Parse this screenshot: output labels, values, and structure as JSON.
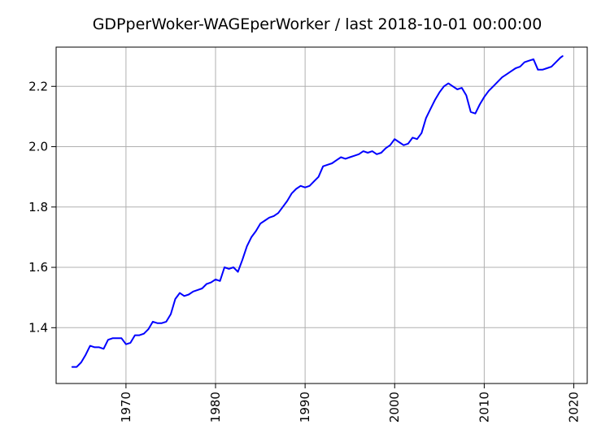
{
  "chart_data": {
    "type": "line",
    "title": "GDPperWoker-WAGEperWorker / last 2018-10-01 00:00:00",
    "xlabel": "",
    "ylabel": "",
    "xlim": [
      1962.2,
      2021.5
    ],
    "ylim": [
      1.215,
      2.33
    ],
    "x_ticks": [
      "1970",
      "1980",
      "1990",
      "2000",
      "2010",
      "2020"
    ],
    "y_ticks": [
      "1.4",
      "1.6",
      "1.8",
      "2.0",
      "2.2"
    ],
    "grid": true,
    "line_color": "#0000ff",
    "series": [
      {
        "x": [
          1964.0,
          1964.5,
          1965.0,
          1965.5,
          1966.0,
          1966.5,
          1967.0,
          1967.5,
          1968.0,
          1968.5,
          1969.0,
          1969.5,
          1970.0,
          1970.5,
          1971.0,
          1971.5,
          1972.0,
          1972.5,
          1973.0,
          1973.5,
          1974.0,
          1974.5,
          1975.0,
          1975.5,
          1976.0,
          1976.5,
          1977.0,
          1977.5,
          1978.0,
          1978.5,
          1979.0,
          1979.5,
          1980.0,
          1980.5,
          1981.0,
          1981.5,
          1982.0,
          1982.5,
          1983.0,
          1983.5,
          1984.0,
          1984.5,
          1985.0,
          1985.5,
          1986.0,
          1986.5,
          1987.0,
          1987.5,
          1988.0,
          1988.5,
          1989.0,
          1989.5,
          1990.0,
          1990.5,
          1991.0,
          1991.5,
          1992.0,
          1992.5,
          1993.0,
          1993.5,
          1994.0,
          1994.5,
          1995.0,
          1995.5,
          1996.0,
          1996.5,
          1997.0,
          1997.5,
          1998.0,
          1998.5,
          1999.0,
          1999.5,
          2000.0,
          2000.5,
          2001.0,
          2001.5,
          2002.0,
          2002.5,
          2003.0,
          2003.5,
          2004.0,
          2004.5,
          2005.0,
          2005.5,
          2006.0,
          2006.5,
          2007.0,
          2007.5,
          2008.0,
          2008.5,
          2009.0,
          2009.5,
          2010.0,
          2010.5,
          2011.0,
          2011.5,
          2012.0,
          2012.5,
          2013.0,
          2013.5,
          2014.0,
          2014.5,
          2015.0,
          2015.5,
          2016.0,
          2016.5,
          2017.0,
          2017.5,
          2018.0,
          2018.5,
          2018.75
        ],
        "values": [
          1.27,
          1.27,
          1.285,
          1.31,
          1.34,
          1.335,
          1.335,
          1.33,
          1.36,
          1.365,
          1.365,
          1.365,
          1.345,
          1.35,
          1.375,
          1.375,
          1.38,
          1.395,
          1.42,
          1.415,
          1.415,
          1.42,
          1.445,
          1.495,
          1.515,
          1.505,
          1.51,
          1.52,
          1.525,
          1.53,
          1.545,
          1.55,
          1.56,
          1.555,
          1.6,
          1.595,
          1.6,
          1.585,
          1.625,
          1.67,
          1.7,
          1.72,
          1.745,
          1.755,
          1.765,
          1.77,
          1.78,
          1.8,
          1.82,
          1.845,
          1.86,
          1.87,
          1.865,
          1.87,
          1.885,
          1.9,
          1.935,
          1.94,
          1.945,
          1.955,
          1.965,
          1.96,
          1.965,
          1.97,
          1.975,
          1.985,
          1.98,
          1.985,
          1.975,
          1.98,
          1.995,
          2.005,
          2.025,
          2.015,
          2.005,
          2.01,
          2.03,
          2.025,
          2.045,
          2.095,
          2.125,
          2.155,
          2.18,
          2.2,
          2.21,
          2.2,
          2.19,
          2.195,
          2.17,
          2.115,
          2.11,
          2.14,
          2.165,
          2.185,
          2.2,
          2.215,
          2.23,
          2.24,
          2.25,
          2.26,
          2.265,
          2.28,
          2.285,
          2.29,
          2.255,
          2.255,
          2.26,
          2.265,
          2.28,
          2.295,
          2.3
        ]
      }
    ]
  }
}
